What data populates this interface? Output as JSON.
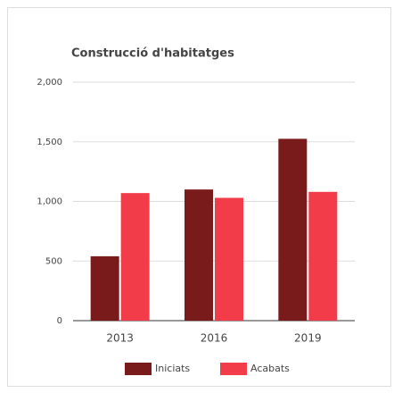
{
  "chart_data": {
    "type": "bar",
    "title": "Construcció d'habitatges",
    "categories": [
      "2013",
      "2016",
      "2019"
    ],
    "series": [
      {
        "name": "Iniciats",
        "color": "#7a1b1b",
        "values": [
          540,
          1100,
          1525
        ]
      },
      {
        "name": "Acabats",
        "color": "#f23c4a",
        "values": [
          1070,
          1030,
          1080
        ]
      }
    ],
    "ylim": [
      0,
      2000
    ],
    "yticks": [
      0,
      500,
      {
        "value": 1000,
        "label": "1,000"
      },
      {
        "value": 1500,
        "label": "1,500"
      },
      {
        "value": 2000,
        "label": "2,000"
      }
    ],
    "grid": true,
    "legend": "bottom"
  }
}
